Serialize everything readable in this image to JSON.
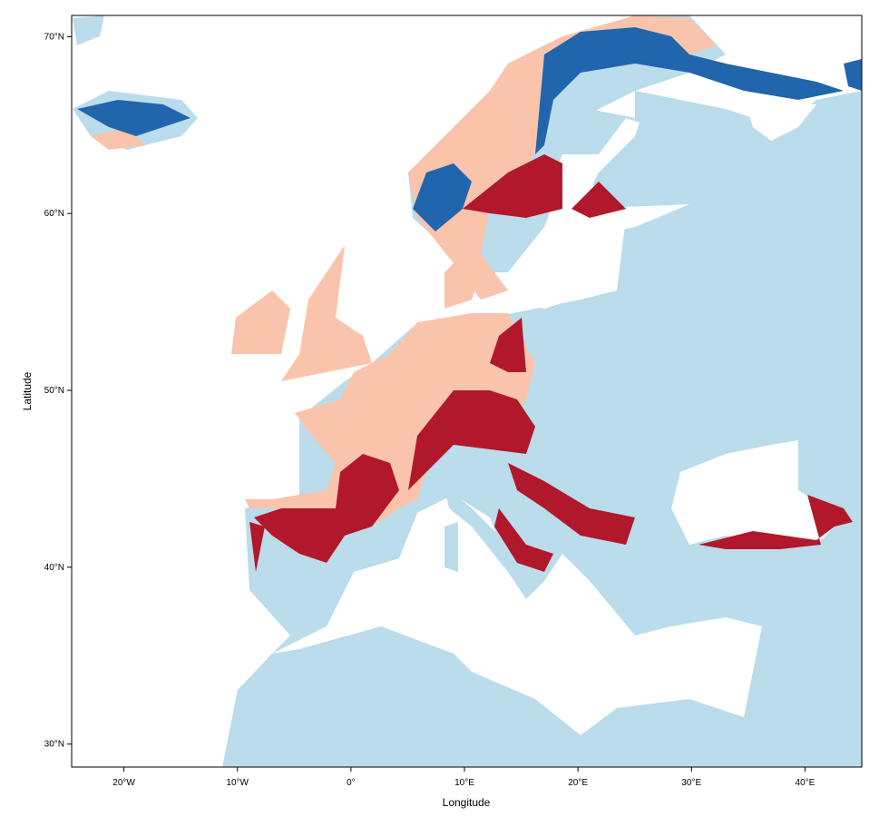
{
  "map": {
    "xlabel": "Longitude",
    "ylabel": "Latitude",
    "xlim": [
      -24.6,
      45
    ],
    "ylim": [
      28.7,
      71.2
    ],
    "xticks": [
      {
        "value": -20,
        "label": "20°W"
      },
      {
        "value": -10,
        "label": "10°W"
      },
      {
        "value": 0,
        "label": "0°"
      },
      {
        "value": 10,
        "label": "10°E"
      },
      {
        "value": 20,
        "label": "20°E"
      },
      {
        "value": 30,
        "label": "30°E"
      },
      {
        "value": 40,
        "label": "40°E"
      }
    ],
    "yticks": [
      {
        "value": 30,
        "label": "30°N"
      },
      {
        "value": 40,
        "label": "40°N"
      },
      {
        "value": 50,
        "label": "50°N"
      },
      {
        "value": 60,
        "label": "60°N"
      },
      {
        "value": 70,
        "label": "70°N"
      }
    ]
  }
}
